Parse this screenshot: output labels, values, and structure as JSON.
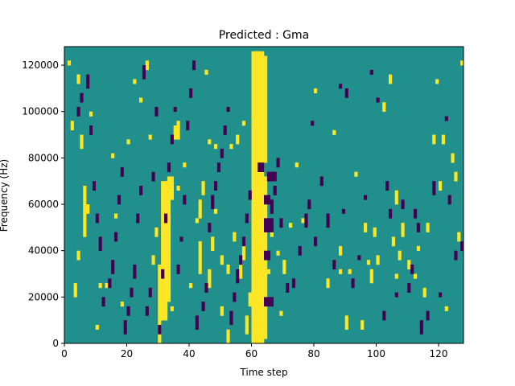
{
  "chart_data": {
    "type": "heatmap",
    "title": "Predicted : Gma",
    "xlabel": "Time step",
    "ylabel": "Frequency (Hz)",
    "x_range": [
      0,
      128
    ],
    "y_range": [
      0,
      128000
    ],
    "n_time_steps": 128,
    "n_frequency_bins": 128,
    "xticks": [
      0,
      20,
      40,
      60,
      80,
      100,
      120
    ],
    "yticks": [
      0,
      20000,
      40000,
      60000,
      80000,
      100000,
      120000
    ],
    "colormap": {
      "low": "#440154",
      "mid": "#21908c",
      "high": "#fde725"
    },
    "background_level": "mid",
    "cells_high": [
      [
        60,
        0,
        3,
        126
      ],
      [
        61,
        0,
        3,
        126
      ],
      [
        62,
        2,
        3,
        70
      ],
      [
        62,
        78,
        3,
        46
      ],
      [
        30,
        0,
        1,
        34
      ],
      [
        31,
        10,
        2,
        60
      ],
      [
        33,
        20,
        1,
        52
      ],
      [
        32,
        62,
        3,
        8
      ],
      [
        34,
        62,
        1,
        10
      ],
      [
        29,
        46,
        1,
        4
      ],
      [
        35,
        88,
        2,
        6
      ],
      [
        36,
        94,
        1,
        2
      ],
      [
        34,
        14,
        1,
        2
      ],
      [
        32,
        18,
        2,
        4
      ],
      [
        43,
        30,
        1,
        14
      ],
      [
        43,
        54,
        1,
        8
      ],
      [
        44,
        64,
        1,
        6
      ],
      [
        46,
        24,
        1,
        8
      ],
      [
        50,
        34,
        1,
        4
      ],
      [
        52,
        0,
        1,
        6
      ],
      [
        52,
        30,
        1,
        4
      ],
      [
        54,
        44,
        1,
        4
      ],
      [
        56,
        28,
        1,
        8
      ],
      [
        57,
        36,
        1,
        6
      ],
      [
        58,
        4,
        1,
        8
      ],
      [
        59,
        16,
        1,
        6
      ],
      [
        61,
        90,
        1,
        8
      ],
      [
        63,
        102,
        1,
        6
      ],
      [
        4,
        112,
        1,
        4
      ],
      [
        5,
        84,
        1,
        6
      ],
      [
        6,
        46,
        1,
        22
      ],
      [
        7,
        56,
        1,
        4
      ],
      [
        8,
        98,
        1,
        2
      ],
      [
        10,
        6,
        1,
        2
      ],
      [
        11,
        24,
        1,
        2
      ],
      [
        13,
        24,
        1,
        2
      ],
      [
        15,
        80,
        1,
        2
      ],
      [
        16,
        54,
        1,
        2
      ],
      [
        18,
        16,
        1,
        2
      ],
      [
        20,
        86,
        1,
        2
      ],
      [
        22,
        112,
        1,
        2
      ],
      [
        24,
        104,
        1,
        2
      ],
      [
        26,
        118,
        1,
        4
      ],
      [
        27,
        88,
        1,
        2
      ],
      [
        28,
        34,
        1,
        4
      ],
      [
        36,
        66,
        1,
        2
      ],
      [
        38,
        76,
        1,
        2
      ],
      [
        40,
        24,
        1,
        2
      ],
      [
        42,
        52,
        1,
        2
      ],
      [
        45,
        116,
        1,
        2
      ],
      [
        46,
        86,
        1,
        2
      ],
      [
        47,
        40,
        1,
        6
      ],
      [
        48,
        84,
        1,
        2
      ],
      [
        48,
        56,
        1,
        2
      ],
      [
        50,
        12,
        1,
        4
      ],
      [
        53,
        84,
        1,
        2
      ],
      [
        55,
        86,
        1,
        4
      ],
      [
        57,
        94,
        1,
        2
      ],
      [
        63,
        12,
        1,
        6
      ],
      [
        63,
        26,
        1,
        4
      ],
      [
        65,
        30,
        1,
        2
      ],
      [
        66,
        46,
        1,
        2
      ],
      [
        68,
        38,
        1,
        2
      ],
      [
        69,
        12,
        1,
        2
      ],
      [
        70,
        30,
        1,
        6
      ],
      [
        72,
        50,
        1,
        2
      ],
      [
        74,
        76,
        1,
        2
      ],
      [
        76,
        52,
        1,
        2
      ],
      [
        80,
        108,
        1,
        2
      ],
      [
        84,
        24,
        1,
        4
      ],
      [
        86,
        90,
        1,
        2
      ],
      [
        88,
        30,
        1,
        2
      ],
      [
        88,
        38,
        1,
        4
      ],
      [
        90,
        6,
        1,
        6
      ],
      [
        91,
        30,
        1,
        2
      ],
      [
        93,
        72,
        1,
        2
      ],
      [
        95,
        6,
        1,
        4
      ],
      [
        96,
        48,
        1,
        4
      ],
      [
        97,
        34,
        1,
        2
      ],
      [
        98,
        26,
        1,
        6
      ],
      [
        99,
        46,
        1,
        4
      ],
      [
        100,
        34,
        1,
        4
      ],
      [
        102,
        100,
        1,
        4
      ],
      [
        104,
        112,
        1,
        4
      ],
      [
        105,
        42,
        1,
        4
      ],
      [
        106,
        60,
        1,
        6
      ],
      [
        106,
        28,
        1,
        2
      ],
      [
        107,
        36,
        1,
        4
      ],
      [
        108,
        46,
        1,
        6
      ],
      [
        110,
        32,
        1,
        4
      ],
      [
        112,
        28,
        1,
        2
      ],
      [
        113,
        40,
        1,
        2
      ],
      [
        115,
        20,
        1,
        4
      ],
      [
        116,
        48,
        1,
        4
      ],
      [
        118,
        86,
        1,
        4
      ],
      [
        119,
        112,
        1,
        2
      ],
      [
        120,
        66,
        1,
        4
      ],
      [
        121,
        86,
        1,
        4
      ],
      [
        122,
        14,
        1,
        2
      ],
      [
        124,
        78,
        1,
        4
      ],
      [
        125,
        70,
        1,
        4
      ],
      [
        126,
        44,
        1,
        4
      ],
      [
        127,
        120,
        1,
        2
      ],
      [
        2,
        92,
        1,
        4
      ],
      [
        3,
        20,
        1,
        6
      ],
      [
        4,
        36,
        1,
        4
      ],
      [
        1,
        120,
        1,
        2
      ]
    ],
    "cells_low": [
      [
        64,
        36,
        2,
        4
      ],
      [
        64,
        48,
        3,
        6
      ],
      [
        64,
        60,
        2,
        4
      ],
      [
        64,
        16,
        3,
        4
      ],
      [
        62,
        74,
        2,
        4
      ],
      [
        65,
        70,
        3,
        4
      ],
      [
        66,
        56,
        1,
        6
      ],
      [
        67,
        64,
        1,
        4
      ],
      [
        68,
        76,
        1,
        4
      ],
      [
        69,
        50,
        1,
        4
      ],
      [
        71,
        22,
        1,
        4
      ],
      [
        73,
        24,
        1,
        4
      ],
      [
        75,
        38,
        1,
        4
      ],
      [
        77,
        50,
        1,
        6
      ],
      [
        78,
        58,
        1,
        4
      ],
      [
        79,
        94,
        1,
        2
      ],
      [
        80,
        42,
        1,
        4
      ],
      [
        82,
        68,
        1,
        4
      ],
      [
        84,
        50,
        1,
        6
      ],
      [
        86,
        32,
        1,
        4
      ],
      [
        88,
        110,
        1,
        2
      ],
      [
        89,
        56,
        1,
        2
      ],
      [
        90,
        106,
        1,
        4
      ],
      [
        92,
        24,
        1,
        4
      ],
      [
        94,
        36,
        1,
        2
      ],
      [
        96,
        62,
        1,
        2
      ],
      [
        98,
        116,
        1,
        2
      ],
      [
        100,
        104,
        1,
        2
      ],
      [
        102,
        10,
        1,
        4
      ],
      [
        103,
        66,
        1,
        4
      ],
      [
        104,
        54,
        1,
        4
      ],
      [
        106,
        20,
        1,
        2
      ],
      [
        108,
        58,
        1,
        4
      ],
      [
        110,
        22,
        1,
        4
      ],
      [
        111,
        30,
        1,
        4
      ],
      [
        112,
        54,
        1,
        4
      ],
      [
        113,
        48,
        1,
        4
      ],
      [
        114,
        4,
        1,
        6
      ],
      [
        116,
        10,
        1,
        4
      ],
      [
        118,
        64,
        1,
        6
      ],
      [
        120,
        20,
        1,
        2
      ],
      [
        122,
        96,
        1,
        2
      ],
      [
        123,
        60,
        1,
        4
      ],
      [
        125,
        36,
        1,
        4
      ],
      [
        127,
        40,
        1,
        4
      ],
      [
        4,
        98,
        1,
        4
      ],
      [
        5,
        104,
        1,
        4
      ],
      [
        7,
        110,
        1,
        6
      ],
      [
        8,
        90,
        1,
        4
      ],
      [
        9,
        66,
        1,
        4
      ],
      [
        10,
        52,
        1,
        4
      ],
      [
        11,
        40,
        1,
        6
      ],
      [
        12,
        16,
        1,
        4
      ],
      [
        14,
        24,
        1,
        4
      ],
      [
        15,
        30,
        1,
        6
      ],
      [
        16,
        44,
        1,
        4
      ],
      [
        17,
        60,
        1,
        4
      ],
      [
        18,
        72,
        1,
        4
      ],
      [
        19,
        4,
        1,
        6
      ],
      [
        20,
        12,
        1,
        4
      ],
      [
        21,
        20,
        1,
        4
      ],
      [
        22,
        28,
        1,
        6
      ],
      [
        23,
        52,
        1,
        4
      ],
      [
        24,
        64,
        1,
        4
      ],
      [
        25,
        114,
        1,
        6
      ],
      [
        26,
        12,
        1,
        4
      ],
      [
        27,
        20,
        1,
        4
      ],
      [
        28,
        70,
        1,
        4
      ],
      [
        29,
        98,
        1,
        4
      ],
      [
        30,
        4,
        1,
        4
      ],
      [
        31,
        28,
        1,
        4
      ],
      [
        32,
        52,
        1,
        4
      ],
      [
        33,
        74,
        1,
        4
      ],
      [
        34,
        86,
        1,
        4
      ],
      [
        35,
        100,
        1,
        2
      ],
      [
        36,
        30,
        1,
        4
      ],
      [
        37,
        44,
        1,
        2
      ],
      [
        38,
        60,
        1,
        4
      ],
      [
        39,
        92,
        1,
        4
      ],
      [
        40,
        106,
        1,
        4
      ],
      [
        41,
        118,
        1,
        4
      ],
      [
        42,
        6,
        1,
        6
      ],
      [
        44,
        14,
        1,
        4
      ],
      [
        45,
        22,
        1,
        4
      ],
      [
        46,
        48,
        1,
        4
      ],
      [
        47,
        58,
        1,
        6
      ],
      [
        48,
        66,
        1,
        4
      ],
      [
        49,
        74,
        1,
        4
      ],
      [
        50,
        80,
        1,
        4
      ],
      [
        51,
        90,
        1,
        4
      ],
      [
        52,
        100,
        1,
        2
      ],
      [
        53,
        8,
        1,
        6
      ],
      [
        54,
        18,
        1,
        4
      ],
      [
        55,
        26,
        1,
        6
      ],
      [
        56,
        34,
        1,
        4
      ],
      [
        57,
        42,
        1,
        4
      ],
      [
        58,
        52,
        1,
        4
      ],
      [
        59,
        62,
        1,
        4
      ]
    ]
  }
}
